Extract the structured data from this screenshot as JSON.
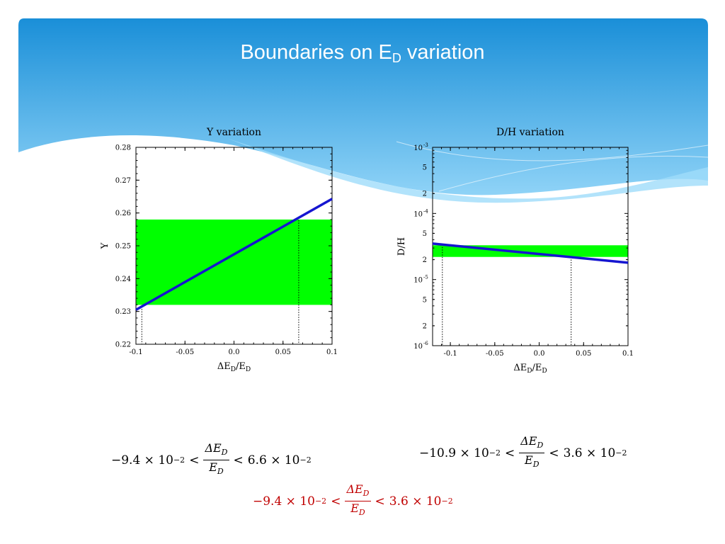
{
  "slide": {
    "title_main": "Boundaries on E",
    "title_sub": "D",
    "title_tail": " variation"
  },
  "colors": {
    "banner_dark": "#1a8fd8",
    "banner_light": "#8fd3f7",
    "allowed_band": "#00ff00",
    "curve": "#1515d0",
    "combined_bound": "#c00000"
  },
  "chart_data": [
    {
      "type": "line",
      "title": "Y variation",
      "xlabel": "ΔE_D/E_D",
      "ylabel": "Y",
      "xlim": [
        -0.1,
        0.1
      ],
      "ylim": [
        0.22,
        0.28
      ],
      "xticks": [
        "-0.1",
        "-0.05",
        "0.0",
        "0.05",
        "0.1"
      ],
      "yticks": [
        "0.22",
        "0.23",
        "0.24",
        "0.25",
        "0.26",
        "0.27",
        "0.28"
      ],
      "series": [
        {
          "x": [
            -0.1,
            0.1
          ],
          "y": [
            0.2305,
            0.2643
          ]
        }
      ],
      "band": {
        "ymin": 0.232,
        "ymax": 0.258
      },
      "bounds": [
        -0.094,
        0.066
      ]
    },
    {
      "type": "line",
      "title": "D/H variation",
      "xlabel": "ΔE_D/E_D",
      "ylabel": "D/H",
      "yscale": "log",
      "xlim": [
        -0.12,
        0.1
      ],
      "ylim": [
        1e-06,
        0.001
      ],
      "xticks": [
        "-0.1",
        "-0.05",
        "0.0",
        "0.05",
        "0.1"
      ],
      "yticks": [
        {
          "base": "10",
          "exp": "-3",
          "value": 0.001
        },
        {
          "label": "5",
          "value": 0.0005
        },
        {
          "label": "2",
          "value": 0.0002
        },
        {
          "base": "10",
          "exp": "-4",
          "value": 0.0001
        },
        {
          "label": "5",
          "value": 5e-05
        },
        {
          "label": "2",
          "value": 2e-05
        },
        {
          "base": "10",
          "exp": "-5",
          "value": 1e-05
        },
        {
          "label": "5",
          "value": 5e-06
        },
        {
          "label": "2",
          "value": 2e-06
        },
        {
          "base": "10",
          "exp": "-6",
          "value": 1e-06
        }
      ],
      "series": [
        {
          "x": [
            -0.12,
            0.1
          ],
          "y": [
            3.5e-05,
            1.8e-05
          ]
        }
      ],
      "band": {
        "ymin": 2.2e-05,
        "ymax": 3.3e-05
      },
      "bounds": [
        -0.109,
        0.036
      ]
    }
  ],
  "equations": {
    "left": {
      "lower": "−9.4 × 10",
      "lower_exp": "−2",
      "lt1": "<",
      "num": "ΔE",
      "num_sub": "D",
      "den": "E",
      "den_sub": "D",
      "lt2": "<",
      "upper": "6.6 × 10",
      "upper_exp": "−2"
    },
    "right": {
      "lower": "−10.9 × 10",
      "lower_exp": "−2",
      "lt1": "<",
      "num": "ΔE",
      "num_sub": "D",
      "den": "E",
      "den_sub": "D",
      "lt2": "<",
      "upper": "3.6 × 10",
      "upper_exp": "−2"
    },
    "combined": {
      "lower": "−9.4 × 10",
      "lower_exp": "−2",
      "lt1": "<",
      "num": "ΔE",
      "num_sub": "D",
      "den": "E",
      "den_sub": "D",
      "lt2": "<",
      "upper": "3.6 × 10",
      "upper_exp": "−2"
    }
  }
}
